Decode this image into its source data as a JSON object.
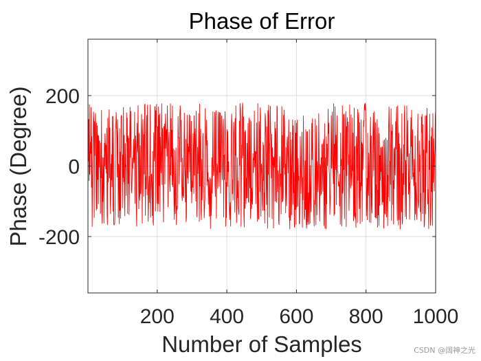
{
  "chart_data": {
    "type": "line",
    "title": "Phase of Error",
    "xlabel": "Number of Samples",
    "ylabel": "Phase (Degree)",
    "xlim": [
      1,
      1000
    ],
    "ylim": [
      -360,
      360
    ],
    "xticks": [
      200,
      400,
      600,
      800,
      1000
    ],
    "yticks": [
      -200,
      0,
      200
    ],
    "xtick_labels": [
      "200",
      "400",
      "600",
      "800",
      "1000"
    ],
    "ytick_labels": [
      "-200",
      "0",
      "200"
    ],
    "grid": true,
    "series": [
      {
        "color": "#ff0000",
        "n_points": 1000,
        "x_start": 1,
        "x_end": 1000,
        "value_range": [
          -180,
          180
        ],
        "distribution": "uniform random phase noise"
      }
    ]
  },
  "watermark": "CSDN @阔神之光"
}
